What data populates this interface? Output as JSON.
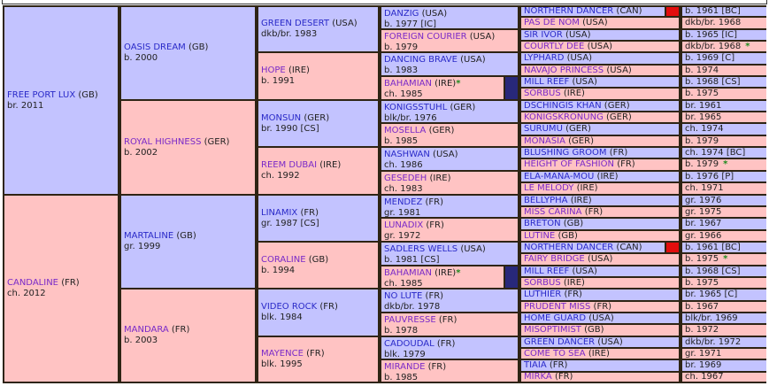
{
  "colors": {
    "sire_bg": "#c3c3ff",
    "dam_bg": "#ffc3c3",
    "border": "#2e2414",
    "inbreed_red": "#e20d0d",
    "inbreed_navy": "#28287a",
    "star": "#1d8a1d"
  },
  "gen1": [
    {
      "name": "FREE PORT LUX",
      "country": "(GB)",
      "info": "br. 2011"
    },
    {
      "name": "CANDALINE",
      "country": "(FR)",
      "info": "ch. 2012"
    }
  ],
  "gen2": [
    {
      "name": "OASIS DREAM",
      "country": "(GB)",
      "info": "b. 2000"
    },
    {
      "name": "ROYAL HIGHNESS",
      "country": "(GER)",
      "info": "b. 2002"
    },
    {
      "name": "MARTALINE",
      "country": "(GB)",
      "info": "gr. 1999"
    },
    {
      "name": "MANDARA",
      "country": "(FR)",
      "info": "b. 2003"
    }
  ],
  "gen3": [
    {
      "name": "GREEN DESERT",
      "country": "(USA)",
      "info": "dkb/br. 1983"
    },
    {
      "name": "HOPE",
      "country": "(IRE)",
      "info": "b. 1991"
    },
    {
      "name": "MONSUN",
      "country": "(GER)",
      "info": "br. 1990 [CS]"
    },
    {
      "name": "REEM DUBAI",
      "country": "(IRE)",
      "info": "ch. 1992"
    },
    {
      "name": "LINAMIX",
      "country": "(FR)",
      "info": "gr. 1987 [CS]"
    },
    {
      "name": "CORALINE",
      "country": "(GB)",
      "info": "b. 1994"
    },
    {
      "name": "VIDEO ROCK",
      "country": "(FR)",
      "info": "blk. 1984"
    },
    {
      "name": "MAYENCE",
      "country": "(FR)",
      "info": "blk. 1995"
    }
  ],
  "gen4": [
    {
      "name": "DANZIG",
      "country": "(USA)",
      "info": "b. 1977 [IC]"
    },
    {
      "name": "FOREIGN COURIER",
      "country": "(USA)",
      "info": "b. 1979"
    },
    {
      "name": "DANCING BRAVE",
      "country": "(USA)",
      "info": "b. 1983"
    },
    {
      "name": "BAHAMIAN",
      "country": "(IRE)",
      "star": "*",
      "info": "ch. 1985"
    },
    {
      "name": "KONIGSSTUHL",
      "country": "(GER)",
      "info": "blk/br. 1976"
    },
    {
      "name": "MOSELLA",
      "country": "(GER)",
      "info": "b. 1985"
    },
    {
      "name": "NASHWAN",
      "country": "(USA)",
      "info": "ch. 1986"
    },
    {
      "name": "GESEDEH",
      "country": "(IRE)",
      "info": "ch. 1983"
    },
    {
      "name": "MENDEZ",
      "country": "(FR)",
      "info": "gr. 1981"
    },
    {
      "name": "LUNADIX",
      "country": "(FR)",
      "info": "gr. 1972"
    },
    {
      "name": "SADLERS WELLS",
      "country": "(USA)",
      "info": "b. 1981 [CS]"
    },
    {
      "name": "BAHAMIAN",
      "country": "(IRE)",
      "star": "*",
      "info": "ch. 1985"
    },
    {
      "name": "NO LUTE",
      "country": "(FR)",
      "info": "dkb/br. 1978"
    },
    {
      "name": "PAUVRESSE",
      "country": "(FR)",
      "info": "b. 1978"
    },
    {
      "name": "CADOUDAL",
      "country": "(FR)",
      "info": "blk. 1979"
    },
    {
      "name": "MIRANDE",
      "country": "(FR)",
      "info": "b. 1985"
    }
  ],
  "gen5": [
    {
      "name": "NORTHERN DANCER",
      "country": "(CAN)",
      "info": "b. 1961 [BC]"
    },
    {
      "name": "PAS DE NOM",
      "country": "(USA)",
      "info": "dkb/br. 1968"
    },
    {
      "name": "SIR IVOR",
      "country": "(USA)",
      "info": "b. 1965 [IC]"
    },
    {
      "name": "COURTLY DEE",
      "country": "(USA)",
      "info": "dkb/br. 1968",
      "star": "*"
    },
    {
      "name": "LYPHARD",
      "country": "(USA)",
      "info": "b. 1969 [C]"
    },
    {
      "name": "NAVAJO PRINCESS",
      "country": "(USA)",
      "info": "b. 1974"
    },
    {
      "name": "MILL REEF",
      "country": "(USA)",
      "info": "b. 1968 [CS]"
    },
    {
      "name": "SORBUS",
      "country": "(IRE)",
      "info": "b. 1975"
    },
    {
      "name": "DSCHINGIS KHAN",
      "country": "(GER)",
      "info": "br. 1961"
    },
    {
      "name": "KONIGSKRONUNG",
      "country": "(GER)",
      "info": "br. 1965"
    },
    {
      "name": "SURUMU",
      "country": "(GER)",
      "info": "ch. 1974"
    },
    {
      "name": "MONASIA",
      "country": "(GER)",
      "info": "b. 1979"
    },
    {
      "name": "BLUSHING GROOM",
      "country": "(FR)",
      "info": "ch. 1974 [BC]"
    },
    {
      "name": "HEIGHT OF FASHION",
      "country": "(FR)",
      "info": "b. 1979",
      "star": "*"
    },
    {
      "name": "ELA-MANA-MOU",
      "country": "(IRE)",
      "info": "b. 1976 [P]"
    },
    {
      "name": "LE MELODY",
      "country": "(IRE)",
      "info": "ch. 1971"
    },
    {
      "name": "BELLYPHA",
      "country": "(IRE)",
      "info": "gr. 1976"
    },
    {
      "name": "MISS CARINA",
      "country": "(FR)",
      "info": "gr. 1975"
    },
    {
      "name": "BRETON",
      "country": "(GB)",
      "info": "br. 1967"
    },
    {
      "name": "LUTINE",
      "country": "(GB)",
      "info": "gr. 1966"
    },
    {
      "name": "NORTHERN DANCER",
      "country": "(CAN)",
      "info": "b. 1961 [BC]"
    },
    {
      "name": "FAIRY BRIDGE",
      "country": "(USA)",
      "info": "b. 1975",
      "star": "*"
    },
    {
      "name": "MILL REEF",
      "country": "(USA)",
      "info": "b. 1968 [CS]"
    },
    {
      "name": "SORBUS",
      "country": "(IRE)",
      "info": "b. 1975"
    },
    {
      "name": "LUTHIER",
      "country": "(FR)",
      "info": "br. 1965 [C]"
    },
    {
      "name": "PRUDENT MISS",
      "country": "(FR)",
      "info": "b. 1967"
    },
    {
      "name": "HOME GUARD",
      "country": "(USA)",
      "info": "blk/br. 1969"
    },
    {
      "name": "MISOPTIMIST",
      "country": "(GB)",
      "info": "b. 1972"
    },
    {
      "name": "GREEN DANCER",
      "country": "(USA)",
      "info": "dkb/br. 1972"
    },
    {
      "name": "COME TO SEA",
      "country": "(IRE)",
      "info": "gr. 1971"
    },
    {
      "name": "TIAIA",
      "country": "(FR)",
      "info": "br. 1969"
    },
    {
      "name": "MIRKA",
      "country": "(FR)",
      "info": "ch. 1967"
    }
  ]
}
